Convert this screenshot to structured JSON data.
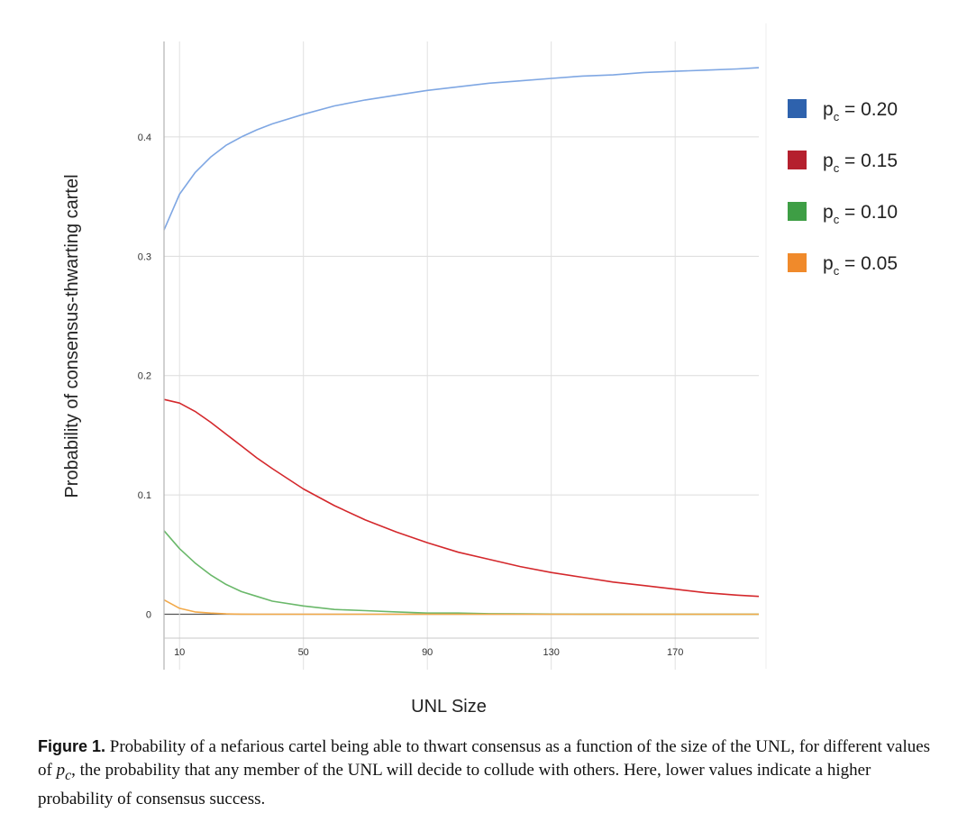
{
  "chart_data": {
    "type": "line",
    "title": "",
    "xlabel": "UNL Size",
    "ylabel": "Probability of consensus-thwarting cartel",
    "xlim": [
      5,
      197
    ],
    "ylim": [
      -0.02,
      0.48
    ],
    "x_ticks": [
      10,
      50,
      90,
      130,
      170
    ],
    "x_tick_labels": [
      "10",
      "50",
      "90",
      "130",
      "170"
    ],
    "y_ticks": [
      0,
      0.1,
      0.2,
      0.3,
      0.4
    ],
    "y_tick_labels": [
      "0",
      "0.1",
      "0.2",
      "0.3",
      "0.4"
    ],
    "grid": true,
    "legend_position": "right",
    "x": [
      5,
      10,
      15,
      20,
      25,
      30,
      35,
      40,
      50,
      60,
      70,
      80,
      90,
      100,
      110,
      120,
      130,
      140,
      150,
      160,
      170,
      180,
      190,
      197
    ],
    "series": [
      {
        "name": "0.20",
        "color": "#7fa7e3",
        "legend_color": "#2e62ad",
        "values": [
          0.322,
          0.352,
          0.37,
          0.383,
          0.393,
          0.4,
          0.406,
          0.411,
          0.419,
          0.426,
          0.431,
          0.435,
          0.439,
          0.442,
          0.445,
          0.447,
          0.449,
          0.451,
          0.452,
          0.454,
          0.455,
          0.456,
          0.457,
          0.458
        ]
      },
      {
        "name": "0.15",
        "color": "#d4282c",
        "legend_color": "#b5202e",
        "values": [
          0.18,
          0.177,
          0.17,
          0.161,
          0.151,
          0.141,
          0.131,
          0.122,
          0.105,
          0.091,
          0.079,
          0.069,
          0.06,
          0.052,
          0.046,
          0.04,
          0.035,
          0.031,
          0.027,
          0.024,
          0.021,
          0.018,
          0.016,
          0.015
        ]
      },
      {
        "name": "0.10",
        "color": "#6ab86a",
        "legend_color": "#3e9e45",
        "values": [
          0.07,
          0.055,
          0.043,
          0.033,
          0.025,
          0.019,
          0.015,
          0.011,
          0.007,
          0.004,
          0.003,
          0.002,
          0.001,
          0.001,
          0.0005,
          0.0003,
          0.0002,
          0.0001,
          0.0001,
          0,
          0,
          0,
          0,
          0
        ]
      },
      {
        "name": "0.05",
        "color": "#f2a949",
        "legend_color": "#f08a2b",
        "values": [
          0.012,
          0.005,
          0.002,
          0.001,
          0.0003,
          0.0001,
          0,
          0,
          0,
          0,
          0,
          0,
          0,
          0,
          0,
          0,
          0,
          0,
          0,
          0,
          0,
          0,
          0,
          0
        ]
      }
    ]
  },
  "legend": {
    "symbol": "p",
    "subscript": "c",
    "separator": " = "
  },
  "caption": {
    "label": "Figure 1.",
    "text_before": " Probability of a nefarious cartel being able to thwart consensus as a function of the size of the UNL, for different values of ",
    "symbol": "p",
    "subscript": "c",
    "text_after": ", the probability that any member of the UNL will decide to collude with others. Here, lower values indicate a higher probability of consensus success."
  }
}
